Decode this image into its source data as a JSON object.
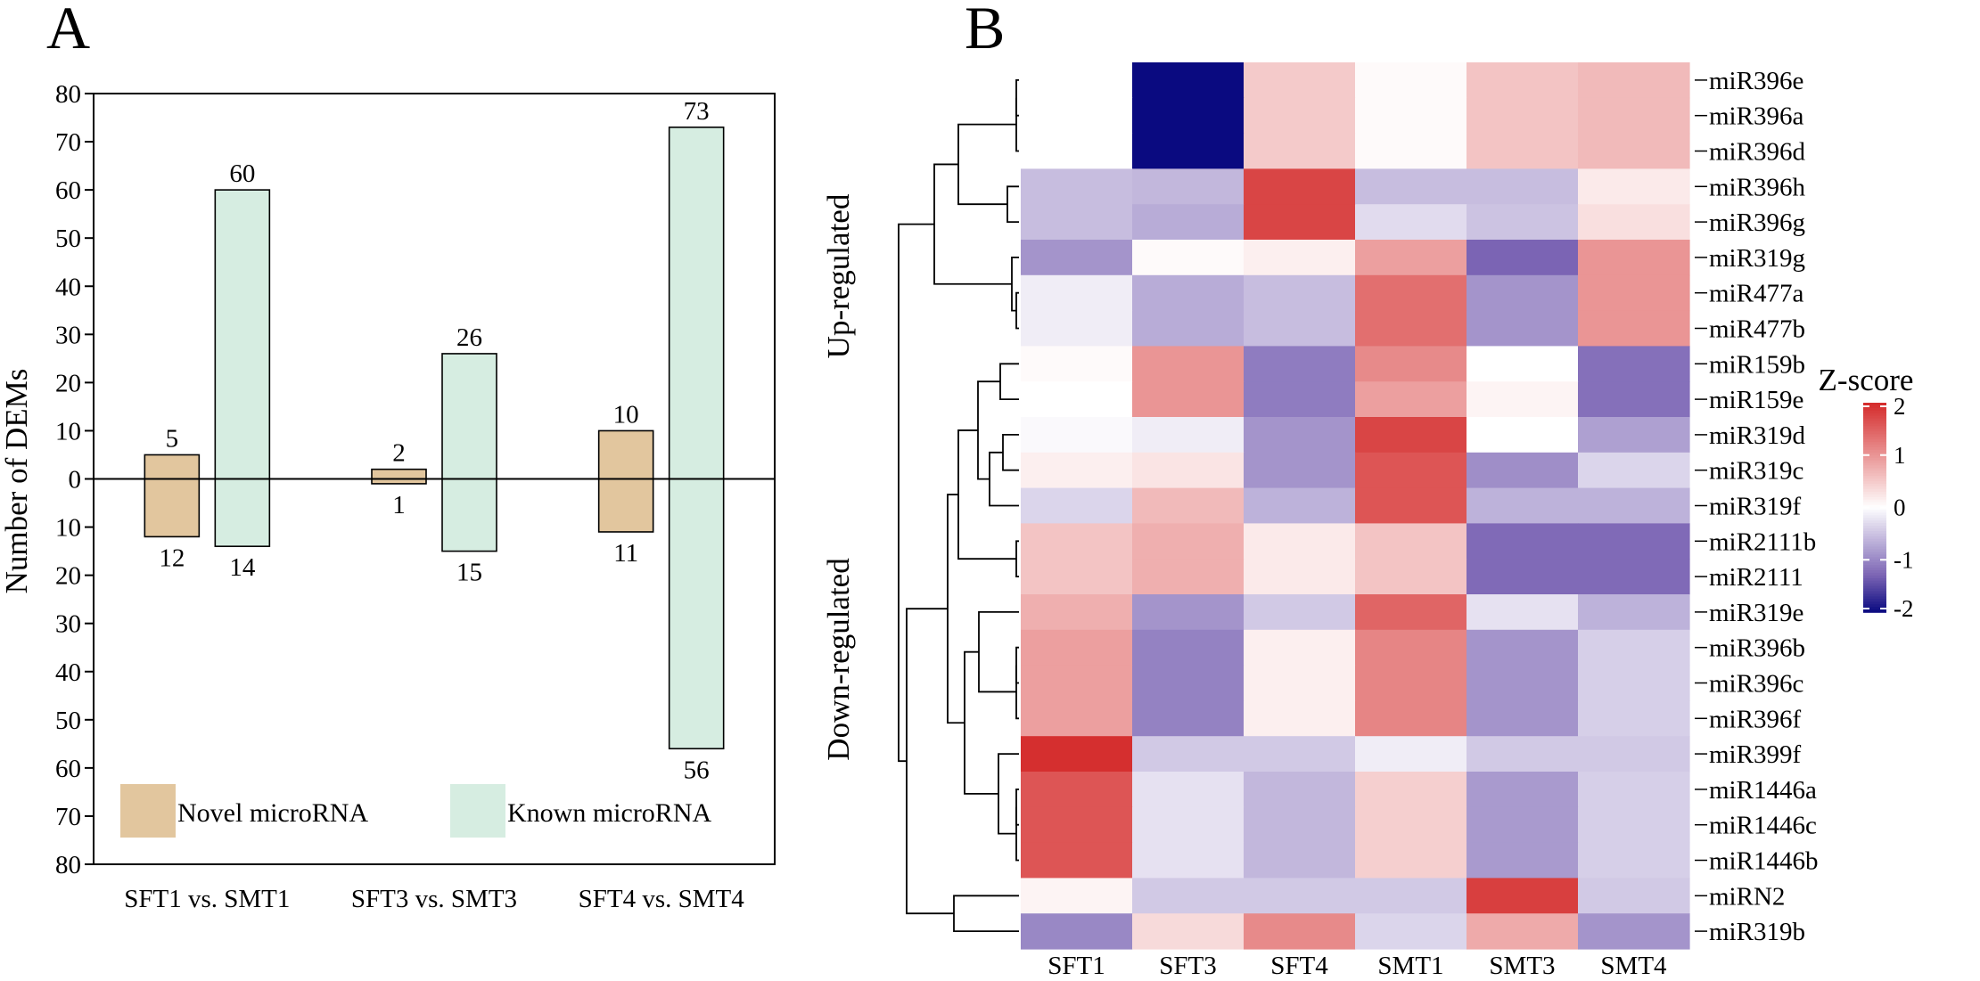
{
  "panel_a_label": "A",
  "panel_b_label": "B",
  "chart_data": [
    {
      "type": "bar",
      "panel": "A",
      "ylabel": "Number of DEMs",
      "xlabel": "",
      "ylim": [
        -80,
        80
      ],
      "y_tick_labels": [
        "80",
        "70",
        "60",
        "50",
        "40",
        "30",
        "20",
        "10",
        "0",
        "10",
        "20",
        "30",
        "40",
        "50",
        "60",
        "70",
        "80"
      ],
      "categories": [
        "SFT1 vs. SMT1",
        "SFT3 vs. SMT3",
        "SFT4 vs. SMT4"
      ],
      "series": [
        {
          "name": "Novel microRNA",
          "color": "#e2c69e",
          "up": [
            5,
            2,
            10
          ],
          "down": [
            12,
            1,
            11
          ]
        },
        {
          "name": "Known microRNA",
          "color": "#d6ede1",
          "up": [
            60,
            26,
            73
          ],
          "down": [
            14,
            15,
            56
          ]
        }
      ],
      "legend": [
        "Novel microRNA",
        "Known microRNA"
      ],
      "legend_position": "bottom"
    },
    {
      "type": "heatmap",
      "panel": "B",
      "columns": [
        "SFT1",
        "SFT3",
        "SFT4",
        "SMT1",
        "SMT3",
        "SMT4"
      ],
      "rows": [
        "miR396e",
        "miR396a",
        "miR396d",
        "miR396h",
        "miR396g",
        "miR319g",
        "miR477a",
        "miR477b",
        "miR159b",
        "miR159e",
        "miR319d",
        "miR319c",
        "miR319f",
        "miR2111b",
        "miR2111",
        "miR319e",
        "miR396b",
        "miR396c",
        "miR396f",
        "miR399f",
        "miR1446a",
        "miR1446c",
        "miR1446b",
        "miRN2",
        "miR319b"
      ],
      "values": [
        [
          0.0,
          -2.0,
          0.5,
          0.05,
          0.55,
          0.65
        ],
        [
          0.0,
          -2.0,
          0.5,
          0.05,
          0.55,
          0.65
        ],
        [
          0.0,
          -2.0,
          0.5,
          0.05,
          0.55,
          0.65
        ],
        [
          -0.55,
          -0.6,
          1.75,
          -0.55,
          -0.55,
          0.2
        ],
        [
          -0.55,
          -0.7,
          1.75,
          -0.3,
          -0.5,
          0.3
        ],
        [
          -0.9,
          0.05,
          0.15,
          0.9,
          -1.3,
          1.0
        ],
        [
          -0.15,
          -0.7,
          -0.55,
          1.35,
          -0.9,
          1.0
        ],
        [
          -0.15,
          -0.7,
          -0.55,
          1.35,
          -0.9,
          1.0
        ],
        [
          0.05,
          1.0,
          -1.1,
          1.1,
          0.0,
          -1.2
        ],
        [
          0.0,
          1.0,
          -1.1,
          0.9,
          0.1,
          -1.2
        ],
        [
          -0.05,
          -0.15,
          -0.9,
          1.75,
          0.0,
          -0.8
        ],
        [
          0.15,
          0.25,
          -0.9,
          1.6,
          -0.95,
          -0.35
        ],
        [
          -0.35,
          0.65,
          -0.65,
          1.6,
          -0.65,
          -0.65
        ],
        [
          0.55,
          0.75,
          0.2,
          0.55,
          -1.25,
          -1.25
        ],
        [
          0.55,
          0.75,
          0.2,
          0.55,
          -1.25,
          -1.25
        ],
        [
          0.75,
          -0.9,
          -0.45,
          1.45,
          -0.25,
          -0.65
        ],
        [
          0.9,
          -1.05,
          0.15,
          1.15,
          -0.9,
          -0.4
        ],
        [
          0.9,
          -1.05,
          0.15,
          1.15,
          -0.9,
          -0.4
        ],
        [
          0.9,
          -1.05,
          0.15,
          1.15,
          -0.9,
          -0.4
        ],
        [
          1.95,
          -0.45,
          -0.45,
          -0.15,
          -0.45,
          -0.45
        ],
        [
          1.6,
          -0.25,
          -0.6,
          0.45,
          -0.85,
          -0.4
        ],
        [
          1.6,
          -0.25,
          -0.6,
          0.45,
          -0.85,
          -0.4
        ],
        [
          1.6,
          -0.25,
          -0.6,
          0.45,
          -0.85,
          -0.4
        ],
        [
          0.1,
          -0.45,
          -0.45,
          -0.45,
          1.8,
          -0.45
        ],
        [
          -1.0,
          0.35,
          1.1,
          -0.35,
          0.8,
          -0.9
        ]
      ],
      "side_labels": [
        "Up-regulated",
        "Down-regulated"
      ],
      "colorbar": {
        "title": "Z-score",
        "ticks": [
          "2",
          "1",
          "0",
          "-1",
          "-2"
        ],
        "range": [
          -2,
          2
        ],
        "colors": {
          "low": "#0a0a80",
          "mid": "#ffffff",
          "high": "#d42a2a"
        }
      },
      "dendrogram": true
    }
  ]
}
